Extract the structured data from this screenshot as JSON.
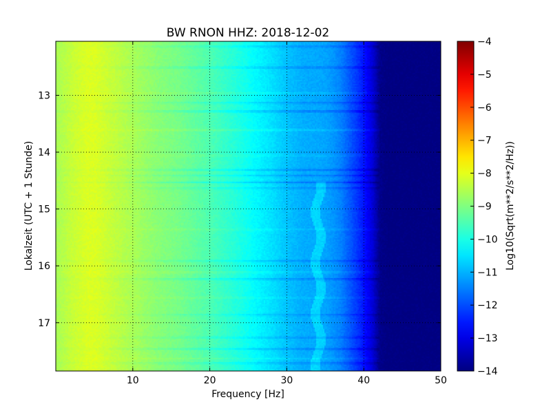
{
  "chart_data": {
    "type": "heatmap",
    "title": "BW RNON HHZ: 2018-12-02",
    "xlabel": "Frequency [Hz]",
    "ylabel": "Lokalzeit (UTC + 1 Stunde)",
    "colorbar_label": "Log10(Sqrt(m**2/s**2/Hz))",
    "xlim": [
      0,
      50
    ],
    "ylim": [
      17.85,
      12.05
    ],
    "x_ticks": [
      10,
      20,
      30,
      40,
      50
    ],
    "x_tick_labels": [
      "10",
      "20",
      "30",
      "40",
      "50"
    ],
    "y_ticks": [
      13,
      14,
      15,
      16,
      17
    ],
    "y_tick_labels": [
      "13",
      "14",
      "15",
      "16",
      "17"
    ],
    "color_range": [
      -14,
      -4
    ],
    "colorbar_ticks": [
      -4,
      -5,
      -6,
      -7,
      -8,
      -9,
      -10,
      -11,
      -12,
      -13,
      -14
    ],
    "colorbar_tick_labels": [
      "−4",
      "−5",
      "−6",
      "−7",
      "−8",
      "−9",
      "−10",
      "−11",
      "−12",
      "−13",
      "−14"
    ],
    "colormap": "jet",
    "grid": true,
    "frequency_profile": {
      "x": [
        0,
        2,
        4,
        5,
        7,
        10,
        13,
        16,
        20,
        22,
        24,
        26,
        28,
        30,
        32,
        34,
        35,
        36,
        37,
        38,
        39,
        40,
        41,
        42,
        43,
        50
      ],
      "values": [
        -8.6,
        -8.3,
        -8.1,
        -8.1,
        -8.3,
        -8.6,
        -8.9,
        -9.1,
        -9.5,
        -9.75,
        -10.0,
        -10.3,
        -10.55,
        -10.85,
        -11.05,
        -11.1,
        -11.15,
        -11.3,
        -11.5,
        -11.85,
        -12.2,
        -12.6,
        -13.1,
        -13.9,
        -14.0,
        -14.0
      ]
    },
    "horizontal_bands": [
      {
        "time": 12.13,
        "value_offset": -0.35
      },
      {
        "time": 12.5,
        "value_offset": -0.45
      },
      {
        "time": 12.95,
        "value_offset": 0.25
      },
      {
        "time": 13.12,
        "value_offset": -0.35
      },
      {
        "time": 13.27,
        "value_offset": -0.55
      },
      {
        "time": 13.6,
        "value_offset": 0.3
      },
      {
        "time": 14.05,
        "value_offset": 0.2
      },
      {
        "time": 14.3,
        "value_offset": -0.45
      },
      {
        "time": 14.4,
        "value_offset": -0.35
      },
      {
        "time": 14.52,
        "value_offset": -0.5
      },
      {
        "time": 14.62,
        "value_offset": -0.3
      },
      {
        "time": 15.35,
        "value_offset": 0.2
      },
      {
        "time": 15.9,
        "value_offset": -0.35
      },
      {
        "time": 16.1,
        "value_offset": 0.25
      },
      {
        "time": 16.22,
        "value_offset": -0.45
      },
      {
        "time": 16.55,
        "value_offset": 0.2
      },
      {
        "time": 16.85,
        "value_offset": -0.3
      },
      {
        "time": 17.25,
        "value_offset": -0.35
      },
      {
        "time": 17.45,
        "value_offset": -0.4
      },
      {
        "time": 17.62,
        "value_offset": 0.2
      },
      {
        "time": 17.7,
        "value_offset": -0.35
      }
    ],
    "line_feature": {
      "frequency": 34,
      "value_offset": 0.45
    }
  }
}
